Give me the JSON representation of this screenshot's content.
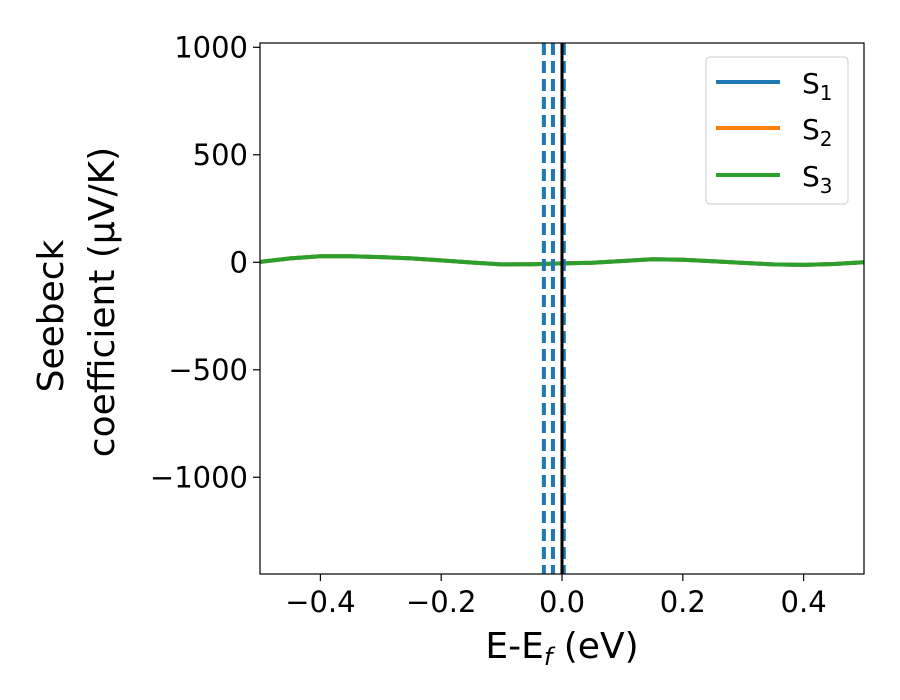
{
  "chart_data": {
    "type": "line",
    "title": "",
    "xlabel_main": "E-E",
    "xlabel_sub": "f",
    "xlabel_unit": " (eV)",
    "ylabel_line1": "Seebeck",
    "ylabel_line2": "coefficient  (μV/K)",
    "xlim": [
      -0.5,
      0.5
    ],
    "ylim": [
      -1450,
      1020
    ],
    "xticks": [
      -0.4,
      -0.2,
      0.0,
      0.2,
      0.4
    ],
    "xtick_labels": [
      "−0.4",
      "−0.2",
      "0.0",
      "0.2",
      "0.4"
    ],
    "yticks": [
      -1000,
      -500,
      0,
      500,
      1000
    ],
    "ytick_labels": [
      "−1000",
      "−500",
      "0",
      "500",
      "1000"
    ],
    "grid": false,
    "legend_position": "top-right",
    "series": [
      {
        "name": "S1",
        "label_main": "S",
        "label_sub": "1",
        "color": "#1f77b4",
        "x": [
          -0.5,
          -0.45,
          -0.4,
          -0.35,
          -0.3,
          -0.25,
          -0.2,
          -0.15,
          -0.1,
          -0.05,
          0.0,
          0.05,
          0.1,
          0.15,
          0.2,
          0.25,
          0.3,
          0.35,
          0.4,
          0.45,
          0.5
        ],
        "y": [
          2,
          18,
          28,
          28,
          24,
          18,
          9,
          -1,
          -10,
          -9,
          -5,
          -2,
          6,
          14,
          12,
          5,
          -3,
          -10,
          -12,
          -8,
          0
        ]
      },
      {
        "name": "S2",
        "label_main": "S",
        "label_sub": "2",
        "color": "#ff7f0e",
        "x": [
          -0.5,
          -0.45,
          -0.4,
          -0.35,
          -0.3,
          -0.25,
          -0.2,
          -0.15,
          -0.1,
          -0.05,
          0.0,
          0.05,
          0.1,
          0.15,
          0.2,
          0.25,
          0.3,
          0.35,
          0.4,
          0.45,
          0.5
        ],
        "y": [
          2,
          18,
          28,
          28,
          24,
          18,
          9,
          -1,
          -10,
          -9,
          -5,
          -2,
          6,
          14,
          12,
          5,
          -3,
          -10,
          -12,
          -8,
          0
        ]
      },
      {
        "name": "S3",
        "label_main": "S",
        "label_sub": "3",
        "color": "#2ca02c",
        "x": [
          -0.5,
          -0.45,
          -0.4,
          -0.35,
          -0.3,
          -0.25,
          -0.2,
          -0.15,
          -0.1,
          -0.05,
          0.0,
          0.05,
          0.1,
          0.15,
          0.2,
          0.25,
          0.3,
          0.35,
          0.4,
          0.45,
          0.5
        ],
        "y": [
          2,
          18,
          28,
          28,
          24,
          18,
          9,
          -1,
          -10,
          -9,
          -5,
          -2,
          6,
          14,
          12,
          5,
          -3,
          -10,
          -12,
          -8,
          0
        ]
      }
    ],
    "vlines": [
      {
        "x": -0.03,
        "color": "#1f77b4",
        "style": "dashed"
      },
      {
        "x": -0.015,
        "color": "#1f77b4",
        "style": "dashed"
      },
      {
        "x": 0.003,
        "color": "#1f77b4",
        "style": "dashed"
      },
      {
        "x": 0.0,
        "color": "#000000",
        "style": "solid"
      }
    ]
  }
}
